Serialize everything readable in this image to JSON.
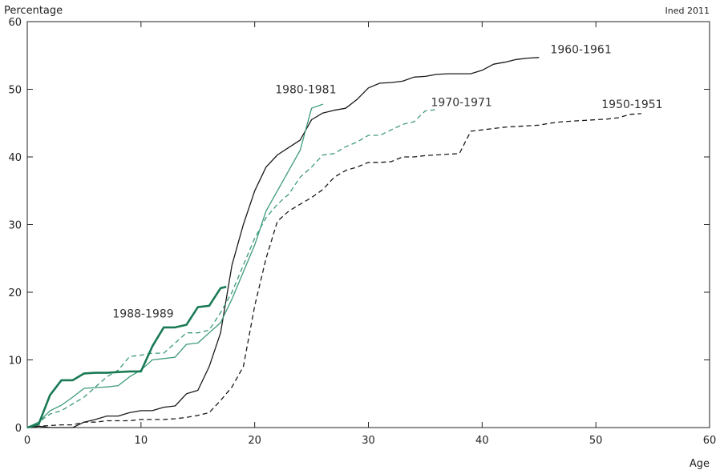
{
  "chart_data": {
    "type": "line",
    "ylabel": "Percentage",
    "xlabel": "Age",
    "credit": "Ined 2011",
    "xlim": [
      0,
      60
    ],
    "ylim": [
      0,
      60
    ],
    "xticks": [
      0,
      10,
      20,
      30,
      40,
      50,
      60
    ],
    "yticks": [
      0,
      10,
      20,
      30,
      40,
      50,
      60
    ],
    "grid": false,
    "colors": {
      "black": "#1a1a1a",
      "green": "#3d9a78",
      "dark_green": "#1a7a55"
    },
    "series": [
      {
        "name": "1960-1961",
        "color": "#1a1a1a",
        "dash": false,
        "bold": false,
        "points": [
          [
            0,
            0
          ],
          [
            1,
            0.2
          ],
          [
            2,
            0
          ],
          [
            3,
            0
          ],
          [
            4,
            0
          ],
          [
            5,
            0.8
          ],
          [
            6,
            1.2
          ],
          [
            7,
            1.7
          ],
          [
            8,
            1.7
          ],
          [
            9,
            2.2
          ],
          [
            10,
            2.5
          ],
          [
            11,
            2.5
          ],
          [
            12,
            3
          ],
          [
            13,
            3.2
          ],
          [
            14,
            5
          ],
          [
            15,
            5.5
          ],
          [
            16,
            9
          ],
          [
            17,
            14
          ],
          [
            18,
            24
          ],
          [
            19,
            30
          ],
          [
            20,
            35
          ],
          [
            21,
            38.5
          ],
          [
            22,
            40.3
          ],
          [
            23,
            41.4
          ],
          [
            24,
            42.5
          ],
          [
            25,
            45.5
          ],
          [
            26,
            46.5
          ],
          [
            27,
            46.9
          ],
          [
            28,
            47.2
          ],
          [
            29,
            48.5
          ],
          [
            30,
            50.2
          ],
          [
            31,
            50.9
          ],
          [
            32,
            51
          ],
          [
            33,
            51.2
          ],
          [
            34,
            51.8
          ],
          [
            35,
            51.9
          ],
          [
            36,
            52.2
          ],
          [
            37,
            52.3
          ],
          [
            38,
            52.3
          ],
          [
            39,
            52.3
          ],
          [
            40,
            52.8
          ],
          [
            41,
            53.7
          ],
          [
            42,
            54
          ],
          [
            43,
            54.4
          ],
          [
            44,
            54.6
          ],
          [
            45,
            54.7
          ]
        ],
        "label_pos": [
          46,
          55.3
        ]
      },
      {
        "name": "1950-1951",
        "color": "#1a1a1a",
        "dash": true,
        "bold": false,
        "points": [
          [
            0,
            0
          ],
          [
            1,
            0.2
          ],
          [
            2,
            0.3
          ],
          [
            3,
            0.4
          ],
          [
            4,
            0.4
          ],
          [
            5,
            0.8
          ],
          [
            6,
            0.8
          ],
          [
            7,
            1
          ],
          [
            8,
            1
          ],
          [
            9,
            1
          ],
          [
            10,
            1.2
          ],
          [
            11,
            1.2
          ],
          [
            12,
            1.2
          ],
          [
            13,
            1.3
          ],
          [
            14,
            1.5
          ],
          [
            15,
            1.8
          ],
          [
            16,
            2.2
          ],
          [
            17,
            4
          ],
          [
            18,
            6
          ],
          [
            19,
            9
          ],
          [
            20,
            18
          ],
          [
            21,
            25
          ],
          [
            22,
            30.5
          ],
          [
            23,
            32
          ],
          [
            24,
            33
          ],
          [
            25,
            34
          ],
          [
            26,
            35.2
          ],
          [
            27,
            37
          ],
          [
            28,
            38
          ],
          [
            29,
            38.5
          ],
          [
            30,
            39.2
          ],
          [
            31,
            39.2
          ],
          [
            32,
            39.3
          ],
          [
            33,
            40
          ],
          [
            34,
            40
          ],
          [
            35,
            40.2
          ],
          [
            36,
            40.3
          ],
          [
            37,
            40.4
          ],
          [
            38,
            40.5
          ],
          [
            39,
            43.8
          ],
          [
            40,
            44
          ],
          [
            41,
            44.2
          ],
          [
            42,
            44.4
          ],
          [
            43,
            44.5
          ],
          [
            44,
            44.6
          ],
          [
            45,
            44.7
          ],
          [
            46,
            45
          ],
          [
            47,
            45.2
          ],
          [
            48,
            45.3
          ],
          [
            49,
            45.4
          ],
          [
            50,
            45.5
          ],
          [
            51,
            45.6
          ],
          [
            52,
            45.8
          ],
          [
            53,
            46.3
          ],
          [
            54,
            46.4
          ]
        ],
        "label_pos": [
          50.5,
          47.2
        ]
      },
      {
        "name": "1980-1981",
        "color": "#3d9a78",
        "dash": false,
        "bold": false,
        "points": [
          [
            0,
            0
          ],
          [
            1,
            0.8
          ],
          [
            2,
            2.5
          ],
          [
            3,
            3.3
          ],
          [
            4,
            4.5
          ],
          [
            5,
            5.8
          ],
          [
            6,
            5.9
          ],
          [
            7,
            6
          ],
          [
            8,
            6.2
          ],
          [
            9,
            7.5
          ],
          [
            10,
            8.5
          ],
          [
            11,
            10
          ],
          [
            12,
            10.2
          ],
          [
            13,
            10.4
          ],
          [
            14,
            12.3
          ],
          [
            15,
            12.5
          ],
          [
            16,
            14
          ],
          [
            17,
            15.5
          ],
          [
            18,
            19
          ],
          [
            19,
            23
          ],
          [
            20,
            27
          ],
          [
            21,
            32
          ],
          [
            22,
            35
          ],
          [
            23,
            38
          ],
          [
            24,
            41
          ],
          [
            25,
            47.2
          ],
          [
            26,
            47.8
          ]
        ],
        "label_pos": [
          21.8,
          49.4
        ]
      },
      {
        "name": "1970-1971",
        "color": "#3d9a78",
        "dash": true,
        "bold": false,
        "points": [
          [
            0,
            0
          ],
          [
            1,
            0.8
          ],
          [
            2,
            2
          ],
          [
            3,
            2.5
          ],
          [
            4,
            3.5
          ],
          [
            5,
            4.5
          ],
          [
            6,
            6
          ],
          [
            7,
            7.5
          ],
          [
            8,
            8.5
          ],
          [
            9,
            10.5
          ],
          [
            10,
            10.7
          ],
          [
            11,
            11
          ],
          [
            12,
            11
          ],
          [
            13,
            12.5
          ],
          [
            14,
            14
          ],
          [
            15,
            14
          ],
          [
            16,
            14.4
          ],
          [
            17,
            17
          ],
          [
            18,
            20
          ],
          [
            19,
            24
          ],
          [
            20,
            28
          ],
          [
            21,
            31
          ],
          [
            22,
            33
          ],
          [
            23,
            34.5
          ],
          [
            24,
            37
          ],
          [
            25,
            38.5
          ],
          [
            26,
            40.3
          ],
          [
            27,
            40.5
          ],
          [
            28,
            41.5
          ],
          [
            29,
            42.2
          ],
          [
            30,
            43.2
          ],
          [
            31,
            43.2
          ],
          [
            32,
            44
          ],
          [
            33,
            44.8
          ],
          [
            34,
            45.2
          ],
          [
            35,
            46.8
          ],
          [
            36,
            47
          ]
        ],
        "label_pos": [
          35.5,
          47.5
        ]
      },
      {
        "name": "1988-1989",
        "color": "#1a7a55",
        "dash": false,
        "bold": true,
        "points": [
          [
            0,
            0
          ],
          [
            1,
            0.5
          ],
          [
            2,
            4.8
          ],
          [
            3,
            7
          ],
          [
            4,
            7
          ],
          [
            5,
            8
          ],
          [
            6,
            8.1
          ],
          [
            7,
            8.1
          ],
          [
            8,
            8.2
          ],
          [
            9,
            8.3
          ],
          [
            10,
            8.3
          ],
          [
            11,
            12
          ],
          [
            12,
            14.8
          ],
          [
            13,
            14.8
          ],
          [
            14,
            15.2
          ],
          [
            15,
            17.8
          ],
          [
            16,
            18
          ],
          [
            17,
            20.6
          ],
          [
            17.5,
            20.8
          ]
        ],
        "label_pos": [
          7.5,
          16.3
        ]
      }
    ]
  }
}
